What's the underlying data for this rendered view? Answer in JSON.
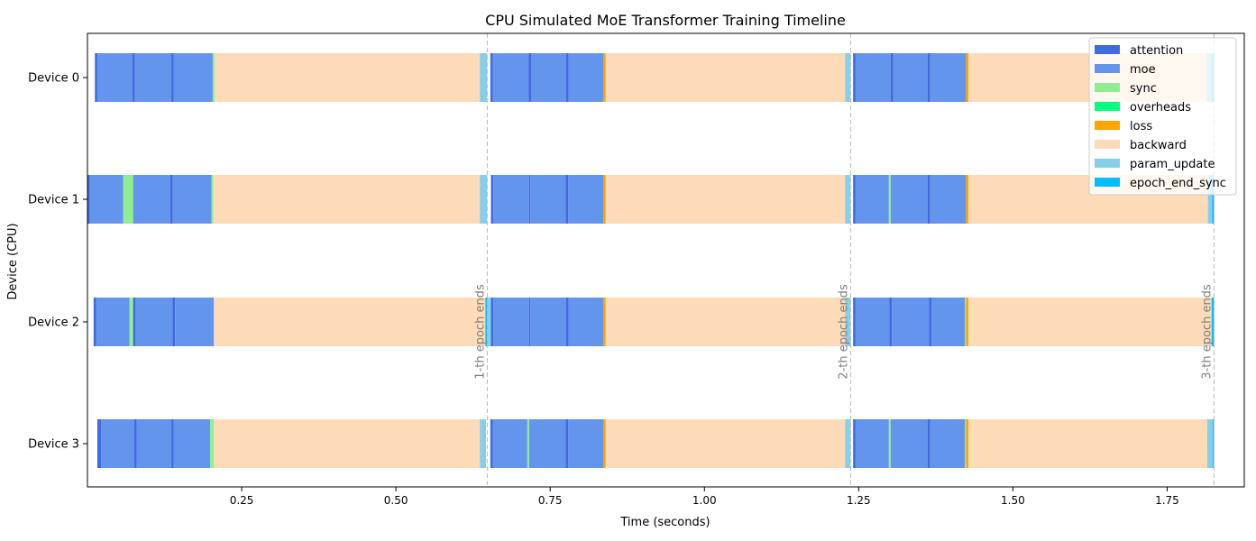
{
  "chart_data": {
    "type": "bar",
    "title": "CPU Simulated MoE Transformer Training Timeline",
    "xlabel": "Time (seconds)",
    "ylabel": "Device (CPU)",
    "xlim": [
      0.0,
      1.875
    ],
    "xticks": [
      0.25,
      0.5,
      0.75,
      1.0,
      1.25,
      1.5,
      1.75
    ],
    "xtick_labels": [
      "0.25",
      "0.50",
      "0.75",
      "1.00",
      "1.25",
      "1.50",
      "1.75"
    ],
    "devices": [
      "Device 0",
      "Device 1",
      "Device 2",
      "Device 3"
    ],
    "legend_position": "top-right",
    "grid": false,
    "categories": [
      {
        "name": "attention",
        "color": "#4169E1"
      },
      {
        "name": "moe",
        "color": "#6495ED"
      },
      {
        "name": "sync",
        "color": "#90EE90"
      },
      {
        "name": "overheads",
        "color": "#00FF7F"
      },
      {
        "name": "loss",
        "color": "#FFA500"
      },
      {
        "name": "backward",
        "color": "#FDDBB8"
      },
      {
        "name": "param_update",
        "color": "#87CEEB"
      },
      {
        "name": "epoch_end_sync",
        "color": "#00BFFF"
      }
    ],
    "epoch_markers": [
      {
        "x": 0.648,
        "label": "1-th epoch ends"
      },
      {
        "x": 1.237,
        "label": "2-th epoch ends"
      },
      {
        "x": 1.826,
        "label": "3-th epoch ends"
      }
    ],
    "series": [
      {
        "device": "Device 0",
        "segments": [
          {
            "type": "attention",
            "start": 0.012,
            "end": 0.016
          },
          {
            "type": "moe",
            "start": 0.016,
            "end": 0.073
          },
          {
            "type": "attention",
            "start": 0.073,
            "end": 0.077
          },
          {
            "type": "moe",
            "start": 0.077,
            "end": 0.136
          },
          {
            "type": "attention",
            "start": 0.136,
            "end": 0.14
          },
          {
            "type": "moe",
            "start": 0.14,
            "end": 0.203
          },
          {
            "type": "sync",
            "start": 0.203,
            "end": 0.206
          },
          {
            "type": "backward",
            "start": 0.206,
            "end": 0.636
          },
          {
            "type": "param_update",
            "start": 0.636,
            "end": 0.648
          },
          {
            "type": "attention",
            "start": 0.653,
            "end": 0.657
          },
          {
            "type": "moe",
            "start": 0.657,
            "end": 0.715
          },
          {
            "type": "attention",
            "start": 0.715,
            "end": 0.719
          },
          {
            "type": "moe",
            "start": 0.719,
            "end": 0.776
          },
          {
            "type": "attention",
            "start": 0.776,
            "end": 0.78
          },
          {
            "type": "moe",
            "start": 0.78,
            "end": 0.836
          },
          {
            "type": "loss",
            "start": 0.836,
            "end": 0.84
          },
          {
            "type": "backward",
            "start": 0.84,
            "end": 1.228
          },
          {
            "type": "param_update",
            "start": 1.228,
            "end": 1.237
          },
          {
            "type": "attention",
            "start": 1.241,
            "end": 1.245
          },
          {
            "type": "moe",
            "start": 1.245,
            "end": 1.302
          },
          {
            "type": "attention",
            "start": 1.302,
            "end": 1.306
          },
          {
            "type": "moe",
            "start": 1.306,
            "end": 1.362
          },
          {
            "type": "attention",
            "start": 1.362,
            "end": 1.366
          },
          {
            "type": "moe",
            "start": 1.366,
            "end": 1.424
          },
          {
            "type": "loss",
            "start": 1.424,
            "end": 1.428
          },
          {
            "type": "backward",
            "start": 1.428,
            "end": 1.814
          },
          {
            "type": "param_update",
            "start": 1.814,
            "end": 1.822
          },
          {
            "type": "epoch_end_sync",
            "start": 1.822,
            "end": 1.826
          }
        ]
      },
      {
        "device": "Device 1",
        "segments": [
          {
            "type": "attention",
            "start": 0.0,
            "end": 0.004
          },
          {
            "type": "moe",
            "start": 0.004,
            "end": 0.058
          },
          {
            "type": "sync",
            "start": 0.058,
            "end": 0.074
          },
          {
            "type": "moe",
            "start": 0.074,
            "end": 0.134
          },
          {
            "type": "attention",
            "start": 0.134,
            "end": 0.138
          },
          {
            "type": "moe",
            "start": 0.138,
            "end": 0.201
          },
          {
            "type": "sync",
            "start": 0.201,
            "end": 0.204
          },
          {
            "type": "backward",
            "start": 0.204,
            "end": 0.636
          },
          {
            "type": "param_update",
            "start": 0.636,
            "end": 0.648
          },
          {
            "type": "attention",
            "start": 0.654,
            "end": 0.658
          },
          {
            "type": "moe",
            "start": 0.658,
            "end": 0.716
          },
          {
            "type": "attention",
            "start": 0.716,
            "end": 0.718
          },
          {
            "type": "moe",
            "start": 0.718,
            "end": 0.775
          },
          {
            "type": "attention",
            "start": 0.775,
            "end": 0.779
          },
          {
            "type": "moe",
            "start": 0.779,
            "end": 0.836
          },
          {
            "type": "loss",
            "start": 0.836,
            "end": 0.84
          },
          {
            "type": "backward",
            "start": 0.84,
            "end": 1.228
          },
          {
            "type": "param_update",
            "start": 1.228,
            "end": 1.237
          },
          {
            "type": "attention",
            "start": 1.241,
            "end": 1.245
          },
          {
            "type": "moe",
            "start": 1.245,
            "end": 1.299
          },
          {
            "type": "sync",
            "start": 1.299,
            "end": 1.302
          },
          {
            "type": "moe",
            "start": 1.302,
            "end": 1.362
          },
          {
            "type": "attention",
            "start": 1.362,
            "end": 1.366
          },
          {
            "type": "moe",
            "start": 1.366,
            "end": 1.424
          },
          {
            "type": "loss",
            "start": 1.424,
            "end": 1.428
          },
          {
            "type": "backward",
            "start": 1.428,
            "end": 1.816
          },
          {
            "type": "param_update",
            "start": 1.816,
            "end": 1.823
          },
          {
            "type": "epoch_end_sync",
            "start": 1.823,
            "end": 1.826
          }
        ]
      },
      {
        "device": "Device 2",
        "segments": [
          {
            "type": "attention",
            "start": 0.01,
            "end": 0.014
          },
          {
            "type": "moe",
            "start": 0.014,
            "end": 0.068
          },
          {
            "type": "sync",
            "start": 0.068,
            "end": 0.074
          },
          {
            "type": "attention",
            "start": 0.074,
            "end": 0.078
          },
          {
            "type": "moe",
            "start": 0.078,
            "end": 0.138
          },
          {
            "type": "attention",
            "start": 0.138,
            "end": 0.142
          },
          {
            "type": "moe",
            "start": 0.142,
            "end": 0.205
          },
          {
            "type": "backward",
            "start": 0.205,
            "end": 0.645
          },
          {
            "type": "epoch_end_sync",
            "start": 0.645,
            "end": 0.648
          },
          {
            "type": "param_update",
            "start": 0.648,
            "end": 0.654
          },
          {
            "type": "attention",
            "start": 0.654,
            "end": 0.658
          },
          {
            "type": "moe",
            "start": 0.658,
            "end": 0.716
          },
          {
            "type": "attention",
            "start": 0.716,
            "end": 0.718
          },
          {
            "type": "moe",
            "start": 0.718,
            "end": 0.776
          },
          {
            "type": "attention",
            "start": 0.776,
            "end": 0.78
          },
          {
            "type": "moe",
            "start": 0.78,
            "end": 0.836
          },
          {
            "type": "loss",
            "start": 0.836,
            "end": 0.84
          },
          {
            "type": "backward",
            "start": 0.84,
            "end": 1.228
          },
          {
            "type": "param_update",
            "start": 1.228,
            "end": 1.237
          },
          {
            "type": "attention",
            "start": 1.241,
            "end": 1.245
          },
          {
            "type": "moe",
            "start": 1.245,
            "end": 1.3
          },
          {
            "type": "attention",
            "start": 1.3,
            "end": 1.304
          },
          {
            "type": "moe",
            "start": 1.304,
            "end": 1.364
          },
          {
            "type": "attention",
            "start": 1.364,
            "end": 1.368
          },
          {
            "type": "moe",
            "start": 1.368,
            "end": 1.422
          },
          {
            "type": "sync",
            "start": 1.422,
            "end": 1.424
          },
          {
            "type": "loss",
            "start": 1.424,
            "end": 1.428
          },
          {
            "type": "backward",
            "start": 1.428,
            "end": 1.822
          },
          {
            "type": "epoch_end_sync",
            "start": 1.822,
            "end": 1.826
          }
        ]
      },
      {
        "device": "Device 3",
        "segments": [
          {
            "type": "attention",
            "start": 0.016,
            "end": 0.022
          },
          {
            "type": "moe",
            "start": 0.022,
            "end": 0.076
          },
          {
            "type": "attention",
            "start": 0.076,
            "end": 0.08
          },
          {
            "type": "moe",
            "start": 0.08,
            "end": 0.136
          },
          {
            "type": "attention",
            "start": 0.136,
            "end": 0.14
          },
          {
            "type": "moe",
            "start": 0.14,
            "end": 0.199
          },
          {
            "type": "sync",
            "start": 0.199,
            "end": 0.205
          },
          {
            "type": "backward",
            "start": 0.205,
            "end": 0.636
          },
          {
            "type": "param_update",
            "start": 0.636,
            "end": 0.646
          },
          {
            "type": "attention",
            "start": 0.653,
            "end": 0.657
          },
          {
            "type": "moe",
            "start": 0.657,
            "end": 0.713
          },
          {
            "type": "sync",
            "start": 0.713,
            "end": 0.716
          },
          {
            "type": "moe",
            "start": 0.716,
            "end": 0.775
          },
          {
            "type": "attention",
            "start": 0.775,
            "end": 0.779
          },
          {
            "type": "moe",
            "start": 0.779,
            "end": 0.836
          },
          {
            "type": "loss",
            "start": 0.836,
            "end": 0.84
          },
          {
            "type": "backward",
            "start": 0.84,
            "end": 1.228
          },
          {
            "type": "param_update",
            "start": 1.228,
            "end": 1.237
          },
          {
            "type": "attention",
            "start": 1.241,
            "end": 1.245
          },
          {
            "type": "moe",
            "start": 1.245,
            "end": 1.299
          },
          {
            "type": "sync",
            "start": 1.299,
            "end": 1.302
          },
          {
            "type": "moe",
            "start": 1.302,
            "end": 1.362
          },
          {
            "type": "attention",
            "start": 1.362,
            "end": 1.366
          },
          {
            "type": "moe",
            "start": 1.366,
            "end": 1.422
          },
          {
            "type": "sync",
            "start": 1.422,
            "end": 1.424
          },
          {
            "type": "loss",
            "start": 1.424,
            "end": 1.428
          },
          {
            "type": "backward",
            "start": 1.428,
            "end": 1.815
          },
          {
            "type": "param_update",
            "start": 1.815,
            "end": 1.824
          },
          {
            "type": "epoch_end_sync",
            "start": 1.824,
            "end": 1.826
          }
        ]
      }
    ]
  }
}
